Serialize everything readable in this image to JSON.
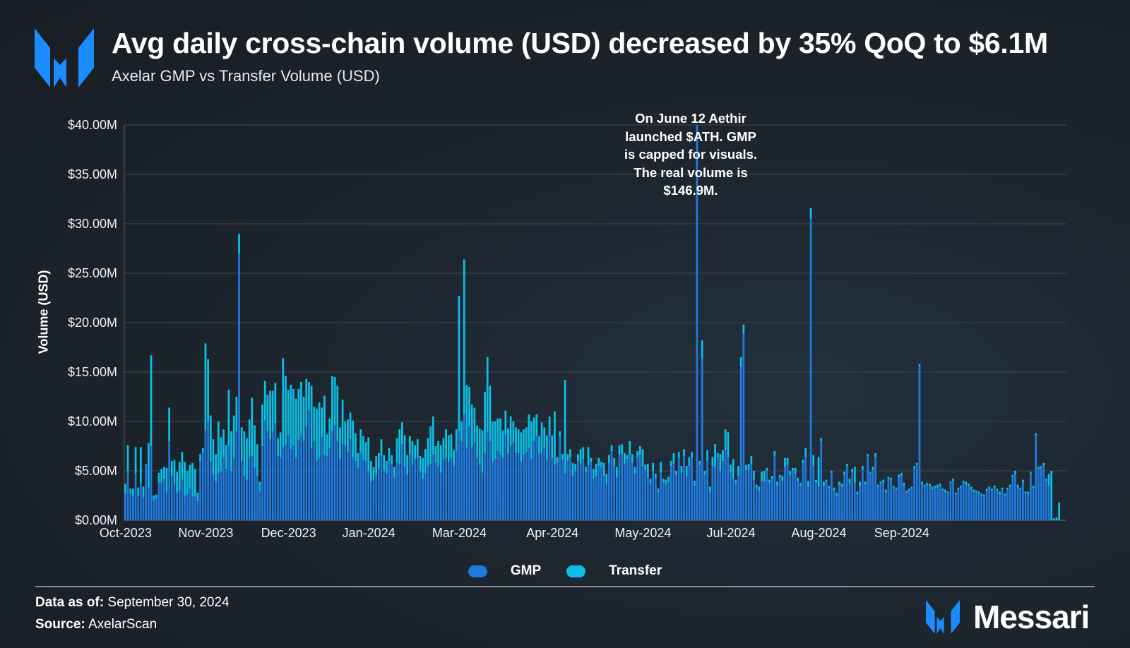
{
  "header": {
    "title": "Avg daily cross-chain volume (USD) decreased by 35% QoQ to $6.1M",
    "subtitle": "Axelar GMP vs Transfer Volume (USD)",
    "logo_icon": "messari-logo-icon"
  },
  "annotation": {
    "text_lines": [
      "On June 12 Aethir",
      "launched $ATH. GMP",
      "is capped for visuals.",
      "The real volume is",
      "$146.9M."
    ]
  },
  "footer": {
    "data_as_of_label": "Data as of:",
    "data_as_of_value": " September 30, 2024",
    "source_label": "Source:",
    "source_value": " AxelarScan",
    "brand_name": "Messari"
  },
  "colors": {
    "gmp": "#1f7ae0",
    "transfer": "#0bbfe6",
    "background": "#1c232b",
    "grid": "#3b4148",
    "logo": "#1a8cff"
  },
  "chart_data": {
    "type": "bar",
    "stacked": true,
    "title": "Avg daily cross-chain volume (USD) decreased by 35% QoQ to $6.1M",
    "subtitle": "Axelar GMP vs Transfer Volume (USD)",
    "xlabel": "",
    "ylabel": "Volume (USD)",
    "ylim": [
      0,
      40
    ],
    "y_unit": "USD millions",
    "y_ticks": [
      "$0.00M",
      "$5.00M",
      "$10.00M",
      "$15.00M",
      "$20.00M",
      "$25.00M",
      "$30.00M",
      "$35.00M",
      "$40.00M"
    ],
    "y_tick_values": [
      0,
      5,
      10,
      15,
      20,
      25,
      30,
      35,
      40
    ],
    "x_start_date": "2023-10-01",
    "x_ticks": [
      {
        "label": "Oct-2023",
        "day": 0
      },
      {
        "label": "Nov-2023",
        "day": 31
      },
      {
        "label": "Dec-2023",
        "day": 63
      },
      {
        "label": "Jan-2024",
        "day": 94
      },
      {
        "label": "Mar-2024",
        "day": 129
      },
      {
        "label": "Apr-2024",
        "day": 165
      },
      {
        "label": "May-2024",
        "day": 200
      },
      {
        "label": "Jul-2024",
        "day": 234
      },
      {
        "label": "Aug-2024",
        "day": 268
      },
      {
        "label": "Sep-2024",
        "day": 300
      }
    ],
    "grid": true,
    "legend_position": "bottom-center",
    "cap_note": "GMP on 2024-06-12 capped at $40M for visuals; real volume $146.9M",
    "series": [
      {
        "name": "GMP",
        "color": "#1f7ae0",
        "values": [
          2.7,
          5.0,
          2.7,
          2.5,
          4.7,
          2.5,
          3.8,
          2.3,
          5.6,
          3.2,
          7.5,
          2.0,
          2.2,
          3.8,
          3.8,
          4.2,
          2.8,
          8.0,
          4.5,
          3.6,
          2.8,
          3.0,
          4.1,
          2.4,
          2.6,
          3.2,
          2.4,
          2.4,
          1.9,
          6.0,
          6.8,
          9.1,
          10.0,
          5.9,
          4.6,
          3.9,
          4.7,
          5.0,
          6.3,
          5.2,
          7.5,
          5.0,
          6.3,
          9.0,
          27.0,
          6.0,
          4.5,
          4.1,
          6.3,
          6.5,
          5.3,
          4.5,
          2.9,
          7.5,
          10.1,
          9.0,
          8.2,
          9.0,
          9.8,
          6.5,
          6.3,
          7.4,
          7.6,
          8.6,
          7.2,
          7.5,
          6.3,
          8.1,
          8.6,
          8.0,
          9.5,
          11.1,
          7.3,
          8.0,
          6.0,
          6.3,
          8.4,
          6.6,
          6.5,
          7.3,
          9.0,
          9.6,
          8.0,
          6.2,
          7.7,
          7.6,
          6.9,
          8.2,
          6.4,
          6.0,
          5.3,
          6.8,
          6.1,
          6.0,
          4.9,
          3.9,
          4.1,
          4.6,
          5.2,
          6.5,
          5.0,
          4.7,
          6.0,
          5.7,
          4.3,
          5.8,
          5.7,
          7.7,
          5.4,
          4.6,
          6.7,
          5.6,
          6.2,
          6.3,
          5.0,
          4.2,
          4.7,
          5.5,
          5.7,
          6.6,
          5.8,
          5.5,
          4.8,
          6.1,
          6.3,
          5.9,
          6.3,
          5.5,
          7.0,
          9.0,
          8.0,
          10.7,
          7.3,
          9.5,
          7.4,
          7.8,
          6.3,
          5.6,
          4.8,
          6.8,
          8.9,
          8.0,
          5.9,
          6.2,
          7.0,
          6.6,
          6.3,
          8.6,
          6.7,
          7.5,
          7.8,
          6.8,
          6.8,
          5.9,
          6.6,
          6.9,
          7.3,
          6.2,
          8.0,
          8.5,
          6.7,
          6.8,
          7.3,
          6.1,
          8.6,
          6.3,
          5.6,
          5.8,
          8.5,
          6.1,
          4.7,
          6.0,
          6.4,
          4.5,
          5.0,
          6.0,
          5.7,
          6.2,
          4.9,
          5.6,
          5.9,
          4.2,
          4.5,
          5.5,
          5.3,
          4.5,
          3.7,
          5.8,
          7.0,
          5.5,
          4.3,
          6.7,
          6.7,
          5.7,
          6.2,
          6.6,
          5.8,
          4.7,
          6.4,
          6.6,
          5.4,
          5.1,
          4.3,
          3.6,
          5.0,
          4.2,
          2.8,
          4.8,
          3.8,
          3.6,
          3.9,
          5.5,
          5.7,
          4.6,
          6.3,
          4.8,
          6.5,
          4.4,
          5.5,
          6.4,
          3.5,
          40.0,
          5.6,
          16.4,
          4.6,
          6.0,
          2.9,
          5.5,
          5.4,
          6.4,
          5.0,
          6.0,
          7.1,
          6.4,
          4.9,
          4.2,
          3.7,
          4.5,
          15.5,
          18.9,
          5.1,
          5.1,
          5.7,
          4.1,
          3.2,
          3.0,
          4.0,
          3.9,
          5.0,
          3.8,
          4.2,
          6.5,
          3.5,
          4.3,
          4.0,
          5.4,
          5.6,
          4.6,
          5.0,
          4.7,
          3.9,
          3.5,
          5.8,
          6.4,
          3.4,
          30.5,
          5.5,
          3.8,
          3.4,
          8.0,
          3.4,
          3.9,
          3.2,
          4.8,
          3.0,
          2.5,
          3.6,
          3.4,
          4.6,
          5.5,
          3.7,
          4.9,
          3.8,
          2.6,
          3.5,
          5.1,
          3.6,
          6.5,
          4.7,
          5.1,
          6.3,
          3.4,
          3.7,
          3.8,
          2.8,
          4.2,
          4.1,
          3.3,
          3.1,
          4.3,
          4.5,
          3.5,
          2.8,
          3.0,
          3.2,
          5.3,
          5.6,
          15.6,
          3.6,
          3.4,
          3.6,
          3.4,
          3.1,
          3.3,
          3.3,
          3.5,
          3.0,
          2.8,
          2.7,
          3.7,
          4.0,
          2.6,
          3.1,
          3.3,
          3.8,
          3.6,
          3.5,
          3.1,
          2.9,
          2.8,
          2.7,
          2.5,
          2.4,
          3.0,
          3.1,
          3.0,
          3.3,
          3.0,
          2.6,
          3.1,
          2.5,
          3.1,
          3.4,
          4.4,
          4.7,
          3.3,
          3.1,
          3.8,
          2.7,
          2.7,
          4.7,
          3.2,
          8.6,
          5.2,
          5.3,
          5.5,
          4.0,
          3.5
        ]
      },
      {
        "name": "Transfer",
        "color": "#0bbfe6",
        "values": [
          1.0,
          2.6,
          0.5,
          0.7,
          2.7,
          0.8,
          3.6,
          1.1,
          0.1,
          4.6,
          9.2,
          0.5,
          0.4,
          1.0,
          1.4,
          1.2,
          2.5,
          3.4,
          1.5,
          2.5,
          2.1,
          2.9,
          2.8,
          3.5,
          2.4,
          2.4,
          3.4,
          2.8,
          0.9,
          0.7,
          0.5,
          8.8,
          6.3,
          4.7,
          3.6,
          2.8,
          5.3,
          3.4,
          2.9,
          2.4,
          5.7,
          4.0,
          4.3,
          3.5,
          2.0,
          3.4,
          4.5,
          4.2,
          3.9,
          5.9,
          4.3,
          3.2,
          1.0,
          4.2,
          4.0,
          3.7,
          4.9,
          4.1,
          4.1,
          1.8,
          2.6,
          9.0,
          7.0,
          4.6,
          6.5,
          5.8,
          6.0,
          5.2,
          5.4,
          4.5,
          4.8,
          2.9,
          6.3,
          3.5,
          5.3,
          5.6,
          3.0,
          6.0,
          2.2,
          3.0,
          5.6,
          4.9,
          5.6,
          3.2,
          4.5,
          2.4,
          3.3,
          2.7,
          3.7,
          2.8,
          1.5,
          2.4,
          2.4,
          1.9,
          3.5,
          2.1,
          1.3,
          1.9,
          1.6,
          1.7,
          1.6,
          1.3,
          1.3,
          0.9,
          1.1,
          2.5,
          3.5,
          2.2,
          3.2,
          2.0,
          1.8,
          2.4,
          1.4,
          1.9,
          1.5,
          2.1,
          2.5,
          2.8,
          3.8,
          3.9,
          1.7,
          2.5,
          2.8,
          2.2,
          2.9,
          2.7,
          2.4,
          1.6,
          2.2,
          13.7,
          2.0,
          15.7,
          6.4,
          4.0,
          4.3,
          3.6,
          3.3,
          3.7,
          4.3,
          6.2,
          7.6,
          5.6,
          4.1,
          3.8,
          3.3,
          3.7,
          2.8,
          2.5,
          2.6,
          3.0,
          2.2,
          2.6,
          2.4,
          3.0,
          2.6,
          2.5,
          3.4,
          3.8,
          2.4,
          2.2,
          1.8,
          3.1,
          2.1,
          2.5,
          1.9,
          2.3,
          5.4,
          0.6,
          0.5,
          0.6,
          9.5,
          0.7,
          0.8,
          1.3,
          0.7,
          0.7,
          1.5,
          1.2,
          0.5,
          1.8,
          0.4,
          1.0,
          1.2,
          0.8,
          0.6,
          1.3,
          1.0,
          0.8,
          0.6,
          0.8,
          1.1,
          0.9,
          1.0,
          1.1,
          0.4,
          1.4,
          0.9,
          0.7,
          0.6,
          0.9,
          1.8,
          0.5,
          1.4,
          0.6,
          0.8,
          0.5,
          0.4,
          1.1,
          0.4,
          0.5,
          0.5,
          0.5,
          1.1,
          0.4,
          0.6,
          0.7,
          0.7,
          1.1,
          0.9,
          0.5,
          0.5,
          0.6,
          0.4,
          1.8,
          0.4,
          1.1,
          0.5,
          0.9,
          2.3,
          0.4,
          1.7,
          1.1,
          2.1,
          2.5,
          0.7,
          2.0,
          0.4,
          1.0,
          1.0,
          0.9,
          0.5,
          0.6,
          0.8,
          0.9,
          0.4,
          0.4,
          0.9,
          1.1,
          0.3,
          0.3,
          0.3,
          0.5,
          0.4,
          0.3,
          0.5,
          0.9,
          0.7,
          0.4,
          0.3,
          0.6,
          0.4,
          0.3,
          0.3,
          0.9,
          0.6,
          1.1,
          1.1,
          0.3,
          3.0,
          0.3,
          0.5,
          0.2,
          0.3,
          0.2,
          0.3,
          0.3,
          0.3,
          0.3,
          0.3,
          0.2,
          0.5,
          0.3,
          1.6,
          0.3,
          0.4,
          0.4,
          0.3,
          0.2,
          0.2,
          0.3,
          0.5,
          0.2,
          0.2,
          0.3,
          0.3,
          0.2,
          0.2,
          0.2,
          0.2,
          0.3,
          0.3,
          0.3,
          0.2,
          0.2,
          0.2,
          0.2,
          0.2,
          0.2,
          0.3,
          0.2,
          0.2,
          0.3,
          0.3,
          0.2,
          0.3,
          0.2,
          0.2,
          0.3,
          0.2,
          0.2,
          0.2,
          0.2,
          0.2,
          0.2,
          0.2,
          0.3,
          0.2,
          0.3,
          0.2,
          0.2,
          0.2,
          0.2,
          0.2,
          0.2,
          0.3,
          0.2,
          0.2,
          0.2,
          0.3,
          0.2,
          0.2,
          0.2,
          0.2,
          0.2,
          0.3,
          0.3,
          0.2,
          0.3,
          0.2,
          0.2,
          0.2,
          0.3,
          0.2,
          0.2,
          0.2,
          0.3,
          0.2,
          1.2,
          5.0,
          0.2,
          0.3,
          1.8
        ]
      }
    ]
  }
}
